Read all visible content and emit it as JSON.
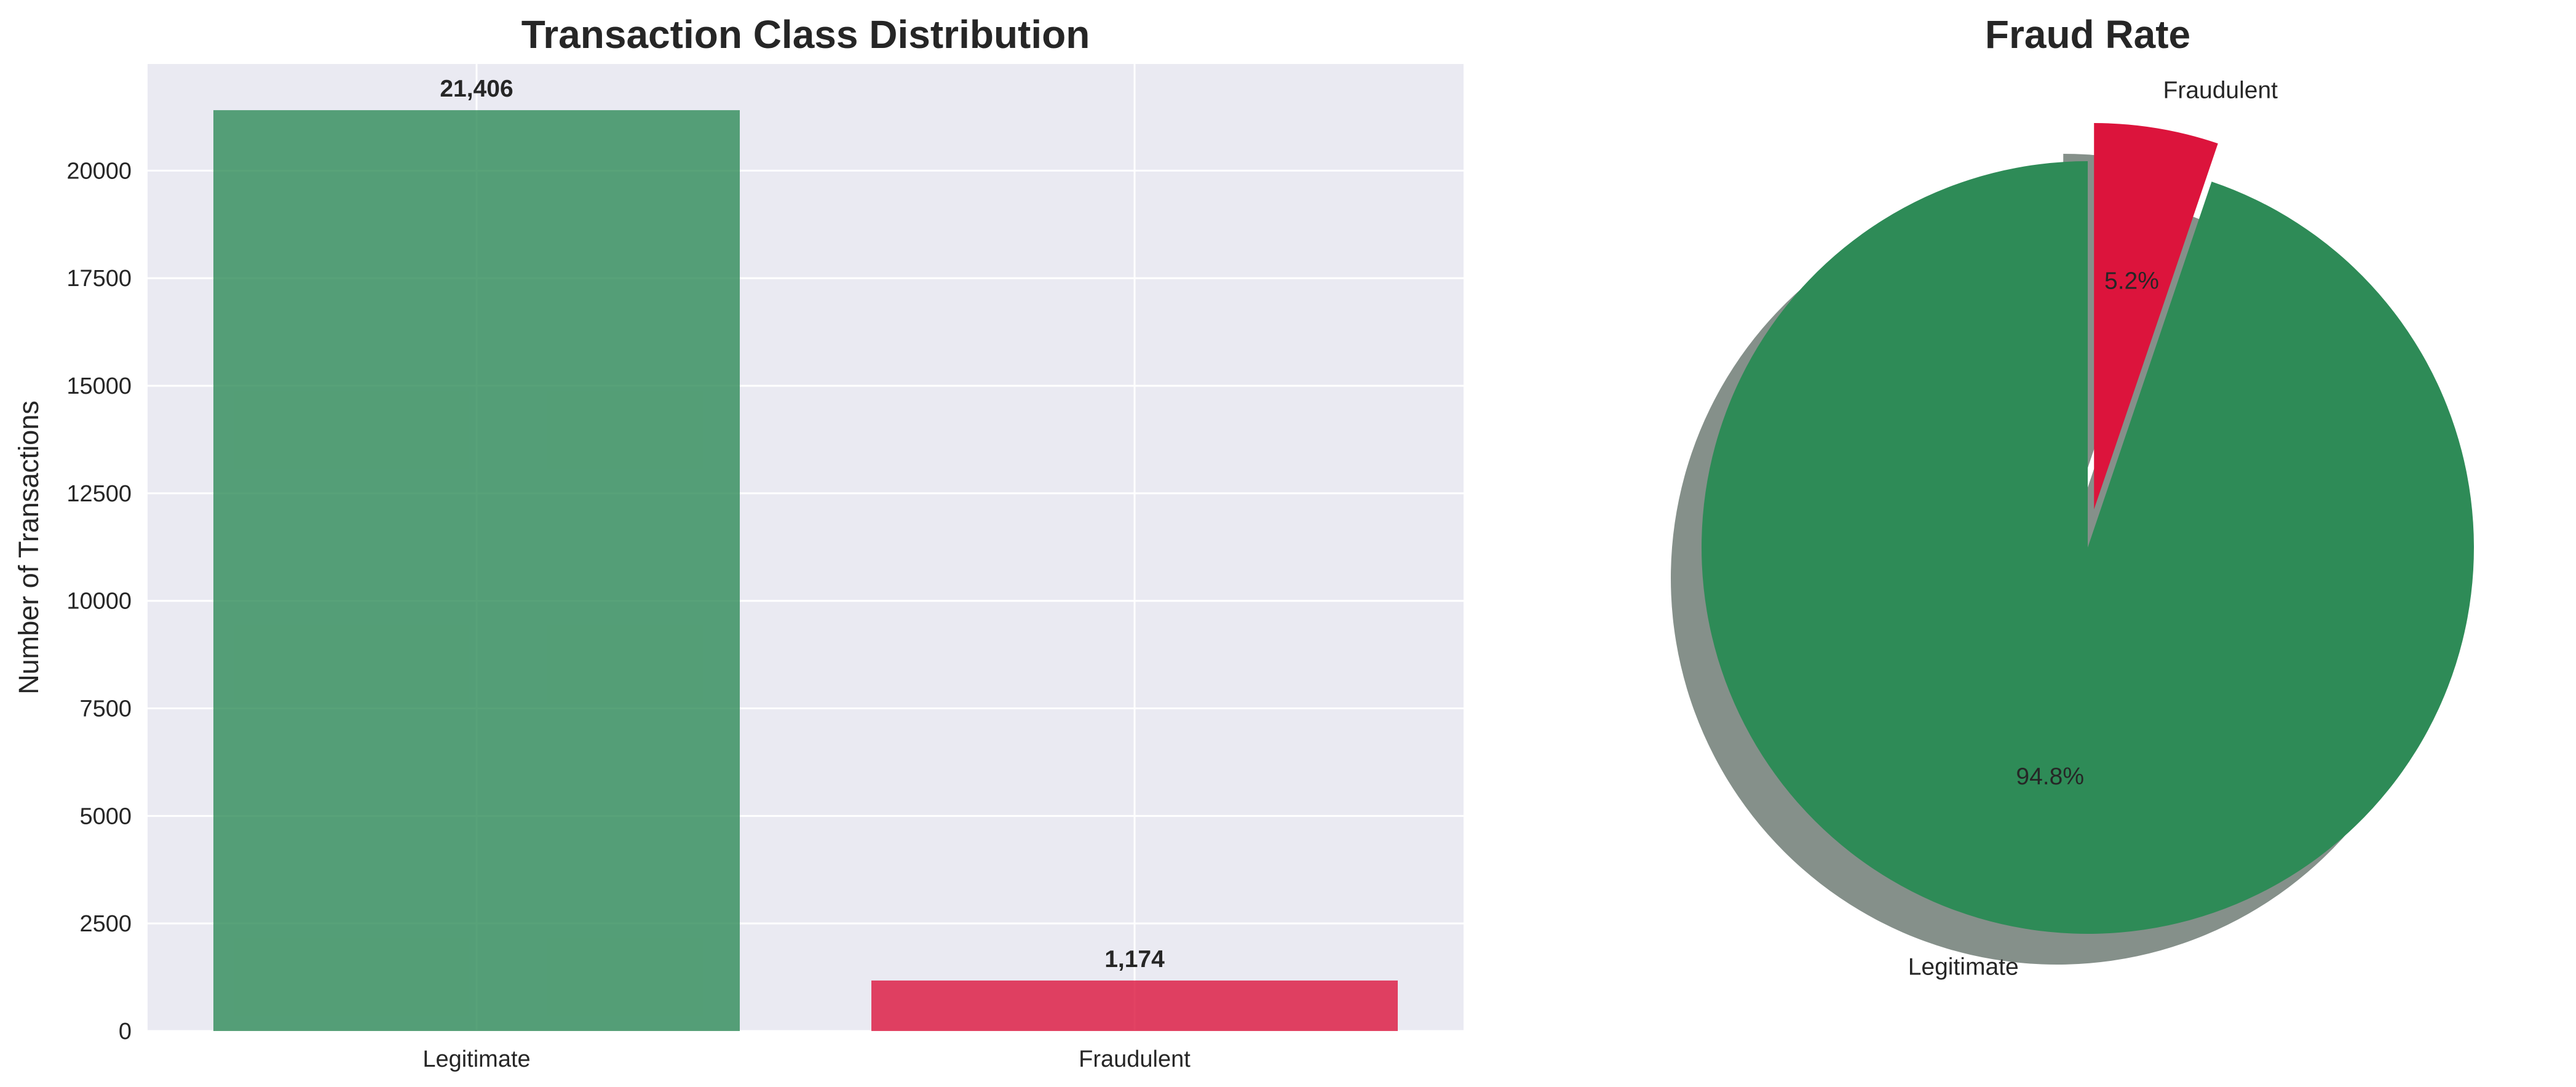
{
  "colors": {
    "legitimate": "#2e8b57",
    "fraudulent": "#dc143c",
    "axes_bg": "#eaeaf2",
    "grid": "#ffffff",
    "shadow": "#85908a"
  },
  "chart_data": [
    {
      "type": "bar",
      "title": "Transaction Class Distribution",
      "categories": [
        "Legitimate",
        "Fraudulent"
      ],
      "values": [
        21406,
        1174
      ],
      "value_labels": [
        "21,406",
        "1,174"
      ],
      "xlabel": "",
      "ylabel": "Number of Transactions",
      "ylim": [
        0,
        22480
      ],
      "yticks": [
        0,
        2500,
        5000,
        7500,
        10000,
        12500,
        15000,
        17500,
        20000
      ],
      "grid": true,
      "bar_colors": [
        "#2e8b57",
        "#dc143c"
      ],
      "bar_alpha": 0.8
    },
    {
      "type": "pie",
      "title": "Fraud Rate",
      "labels": [
        "Legitimate",
        "Fraudulent"
      ],
      "values": [
        21406,
        1174
      ],
      "percent_labels": [
        "94.8%",
        "5.2%"
      ],
      "colors": [
        "#2e8b57",
        "#dc143c"
      ],
      "explode": [
        0,
        0.1
      ],
      "shadow": true,
      "start_angle": 90
    }
  ]
}
